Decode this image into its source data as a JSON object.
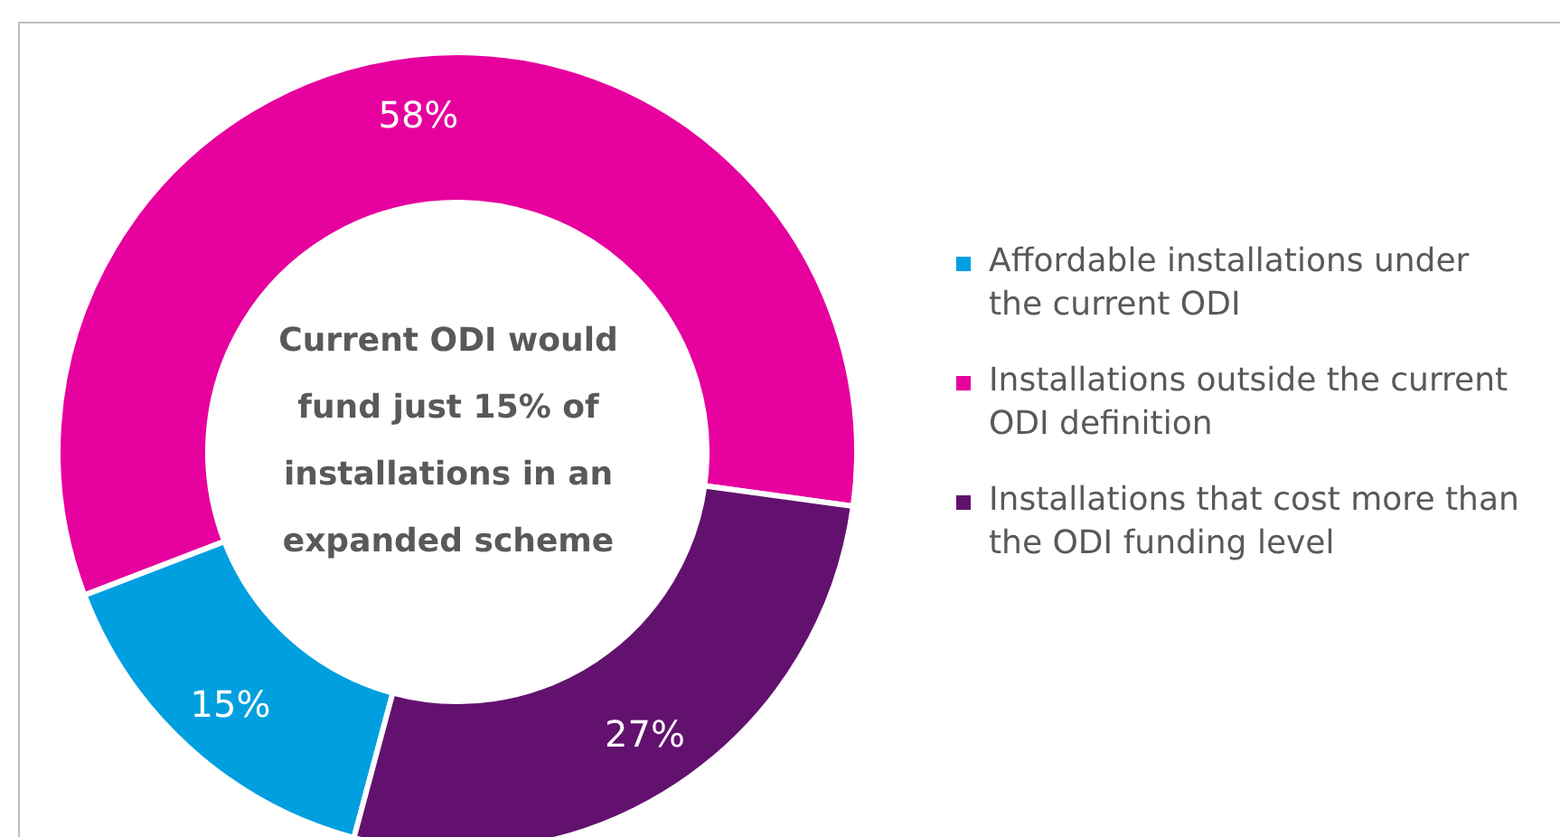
{
  "chart_data": {
    "type": "donut",
    "categories": [
      "Affordable installations under the current ODI",
      "Installations outside the current ODI definition",
      "Installations that cost more than the ODI funding level"
    ],
    "values": [
      15,
      58,
      27
    ],
    "colors": [
      "#009fdf",
      "#e6009e",
      "#62126e"
    ],
    "value_labels": [
      "15%",
      "58%",
      "27%"
    ],
    "legend": "right",
    "annotations": [
      "Current ODI would fund just 15% of installations in an expanded scheme"
    ]
  }
}
